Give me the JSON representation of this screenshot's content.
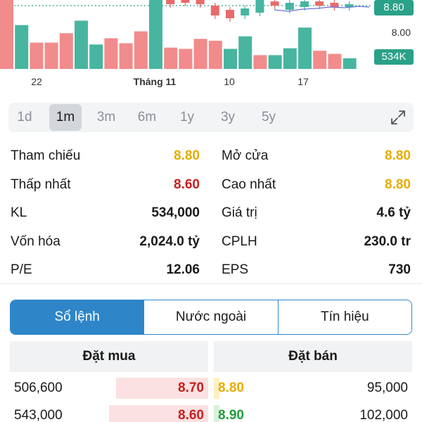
{
  "chart_data": {
    "type": "candlestick+volume",
    "x_ticks": [
      "22",
      "Tháng 11",
      "10",
      "17"
    ],
    "price_axis_labels": [
      "8.80",
      "8.00"
    ],
    "current_price_tag": "8.80",
    "current_volume_tag": "534K",
    "volume_series": [
      {
        "color": "red",
        "value": 1.1
      },
      {
        "color": "green",
        "value": 0.7
      },
      {
        "color": "red",
        "value": 0.42
      },
      {
        "color": "red",
        "value": 0.42
      },
      {
        "color": "red",
        "value": 0.57
      },
      {
        "color": "green",
        "value": 0.77
      },
      {
        "color": "green",
        "value": 0.39
      },
      {
        "color": "red",
        "value": 0.49
      },
      {
        "color": "red",
        "value": 0.41
      },
      {
        "color": "red",
        "value": 0.6
      },
      {
        "color": "green",
        "value": 1.3
      },
      {
        "color": "red",
        "value": 0.34
      },
      {
        "color": "red",
        "value": 0.32
      },
      {
        "color": "red",
        "value": 0.48
      },
      {
        "color": "red",
        "value": 0.45
      },
      {
        "color": "green",
        "value": 0.32
      },
      {
        "color": "green",
        "value": 0.52
      },
      {
        "color": "red",
        "value": 0.22
      },
      {
        "color": "green",
        "value": 0.22
      },
      {
        "color": "green",
        "value": 0.33
      },
      {
        "color": "green",
        "value": 0.66
      },
      {
        "color": "red",
        "value": 0.29
      },
      {
        "color": "red",
        "value": 0.24
      },
      {
        "color": "green",
        "value": 0.17
      }
    ],
    "colors": {
      "up": "#48b5a0",
      "down": "#f28b8b",
      "tag_green": "#2aa189"
    }
  },
  "timeframes": {
    "items": [
      "1d",
      "1m",
      "3m",
      "6m",
      "1y",
      "3y",
      "5y"
    ],
    "active": "1m"
  },
  "stats": {
    "ref_label": "Tham chiếu",
    "ref_value": "8.80",
    "open_label": "Mở cửa",
    "open_value": "8.80",
    "low_label": "Thấp nhất",
    "low_value": "8.60",
    "high_label": "Cao nhất",
    "high_value": "8.80",
    "vol_label": "KL",
    "vol_value": "534,000",
    "value_label": "Giá trị",
    "value_value": "4.6 tỷ",
    "cap_label": "Vốn hóa",
    "cap_value": "2,024.0 tỷ",
    "shares_label": "CPLH",
    "shares_value": "230.0 tr",
    "pe_label": "P/E",
    "pe_value": "12.06",
    "eps_label": "EPS",
    "eps_value": "730"
  },
  "tabs": [
    "Sổ lệnh",
    "Nước ngoài",
    "Tín hiệu"
  ],
  "orderbook": {
    "bid_header": "Đặt mua",
    "ask_header": "Đặt bán",
    "rows": [
      {
        "bid_vol": "506,600",
        "bid_price": "8.70",
        "ask_price": "8.80",
        "ask_vol": "95,000"
      },
      {
        "bid_vol": "543,000",
        "bid_price": "8.60",
        "ask_price": "8.90",
        "ask_vol": "102,000"
      }
    ],
    "colors": {
      "bid": "#c81e1e",
      "ask_ref": "#e6ac00",
      "ask_up": "#1f9d3a"
    }
  }
}
